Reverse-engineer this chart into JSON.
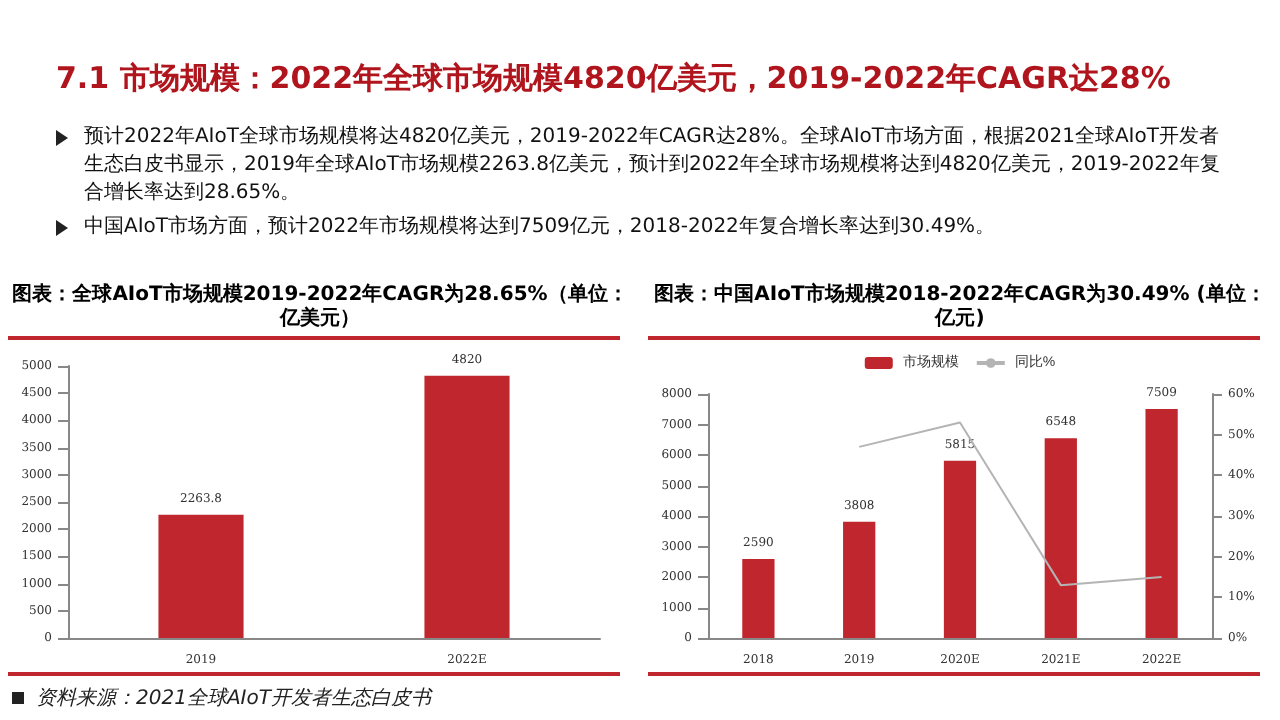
{
  "chart_data": [
    {
      "type": "other",
      "title": "7.1 市场规模：2022年全球市场规模4820亿美元，2019-2022年CAGR达28%",
      "annotations": [
        "预计2022年AIoT全球市场规模将达4820亿美元，2019-2022年CAGR达28%。全球AIoT市场方面，根据2021全球AIoT开发者生态白皮书显示，2019年全球AIoT市场规模2263.8亿美元，预计到2022年全球市场规模将达到4820亿美元，2019-2022年复合增长率达到28.65%。",
        "中国AIoT市场方面，预计2022年市场规模将达到7509亿元，2018-2022年复合增长率达到30.49%。"
      ]
    },
    {
      "type": "bar",
      "title": "图表：全球AIoT市场规模2019-2022年CAGR为28.65%（单位：亿美元）",
      "categories": [
        "2019",
        "2022E"
      ],
      "values": [
        2263.8,
        4820
      ],
      "color": "#c0262d",
      "data_labels": true,
      "ylim": [
        0,
        5000
      ],
      "yticks": [
        0,
        500,
        1000,
        1500,
        2000,
        2500,
        3000,
        3500,
        4000,
        4500,
        5000
      ],
      "grid": false,
      "legend": false,
      "annotations": [
        "资料来源：2021全球AIoT开发者生态白皮书"
      ]
    },
    {
      "type": "bar",
      "title": "图表：中国AIoT市场规模2018-2022年CAGR为30.49% (单位：亿元)",
      "categories": [
        "2018",
        "2019",
        "2020E",
        "2021E",
        "2022E"
      ],
      "legend": "top",
      "grid": false,
      "marker": "none",
      "series": [
        {
          "name": "市场规模",
          "type": "bar",
          "color": "#c0262d",
          "values": [
            2590,
            3808,
            5815,
            6548,
            7509
          ],
          "value_labels": [
            "2590",
            "3808",
            "5815",
            "6548",
            "7509"
          ]
        },
        {
          "name": "同比%",
          "type": "line",
          "axis": "y2",
          "color": "#b4b4b4",
          "values": [
            null,
            47,
            53,
            13,
            15
          ]
        }
      ],
      "ylim": [
        0,
        8000
      ],
      "yticks": [
        0,
        1000,
        2000,
        3000,
        4000,
        5000,
        6000,
        7000,
        8000
      ],
      "y2lim": [
        0,
        60
      ],
      "y2ticks": [
        {
          "value": 0,
          "label": "0%"
        },
        {
          "value": 10,
          "label": "10%"
        },
        {
          "value": 20,
          "label": "20%"
        },
        {
          "value": 30,
          "label": "30%"
        },
        {
          "value": 40,
          "label": "40%"
        },
        {
          "value": 50,
          "label": "50%"
        },
        {
          "value": 60,
          "label": "60%"
        }
      ]
    }
  ]
}
